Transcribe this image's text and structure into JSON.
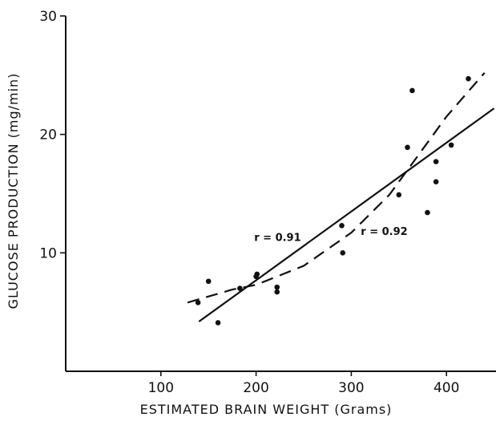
{
  "chart_data": {
    "type": "scatter",
    "title": "",
    "xlabel": "ESTIMATED BRAIN WEIGHT (Grams)",
    "ylabel": "GLUCOSE PRODUCTION (mg/min)",
    "xlim": [
      0,
      450
    ],
    "ylim": [
      0,
      30
    ],
    "xticks": [
      100,
      200,
      300,
      400
    ],
    "yticks": [
      10,
      20,
      30
    ],
    "grid": false,
    "points": [
      {
        "x": 139,
        "y": 5.8
      },
      {
        "x": 150,
        "y": 7.6
      },
      {
        "x": 160,
        "y": 4.1
      },
      {
        "x": 183,
        "y": 7.0
      },
      {
        "x": 200,
        "y": 8.0
      },
      {
        "x": 201,
        "y": 8.2
      },
      {
        "x": 222,
        "y": 7.1
      },
      {
        "x": 222,
        "y": 6.7
      },
      {
        "x": 290,
        "y": 12.3
      },
      {
        "x": 291,
        "y": 10.0
      },
      {
        "x": 350,
        "y": 14.9
      },
      {
        "x": 359,
        "y": 18.9
      },
      {
        "x": 364,
        "y": 23.7
      },
      {
        "x": 380,
        "y": 13.4
      },
      {
        "x": 389,
        "y": 16.0
      },
      {
        "x": 389,
        "y": 17.7
      },
      {
        "x": 405,
        "y": 19.1
      },
      {
        "x": 423,
        "y": 24.7
      }
    ],
    "fits": [
      {
        "style": "solid",
        "label": "r = 0.91",
        "x": [
          140,
          450
        ],
        "y": [
          4.2,
          22.2
        ]
      },
      {
        "style": "dashed",
        "label": "r = 0.92",
        "x": [
          128,
          175,
          200,
          250,
          300,
          340,
          370,
          400,
          440
        ],
        "y": [
          5.8,
          6.9,
          7.3,
          8.9,
          11.7,
          14.9,
          18.2,
          21.5,
          25.2
        ]
      }
    ],
    "annotations": [
      "r = 0.91",
      "r = 0.92"
    ]
  }
}
